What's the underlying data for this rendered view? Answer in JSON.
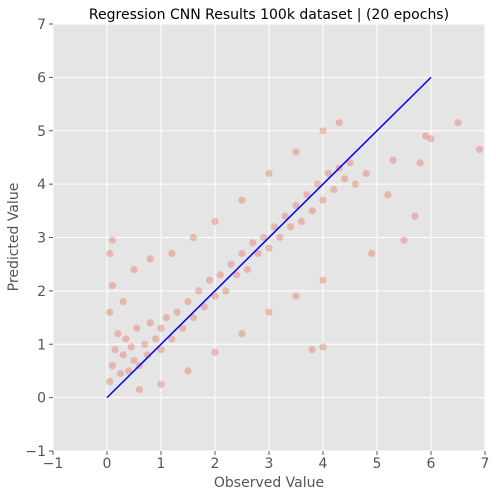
{
  "chart_data": {
    "type": "scatter",
    "title": "Regression CNN Results 100k dataset | (20 epochs)",
    "xlabel": "Observed Value",
    "ylabel": "Predicted Value",
    "xlim": [
      -1,
      7
    ],
    "ylim": [
      -1,
      7
    ],
    "xticks": [
      "−1",
      "0",
      "1",
      "2",
      "3",
      "4",
      "5",
      "6",
      "7"
    ],
    "yticks": [
      "−1",
      "0",
      "1",
      "2",
      "3",
      "4",
      "5",
      "6",
      "7"
    ],
    "grid": true,
    "background": "#e5e5e5",
    "point_color": "#e24a33",
    "fit_line_color": "#0000ff",
    "fit_line": {
      "x": [
        0,
        6
      ],
      "y": [
        0,
        6
      ]
    },
    "series": [
      {
        "values": [
          {
            "x": 0.05,
            "y": 0.3
          },
          {
            "x": 0.1,
            "y": 0.6
          },
          {
            "x": 0.15,
            "y": 0.9
          },
          {
            "x": 0.2,
            "y": 1.2
          },
          {
            "x": 0.25,
            "y": 0.45
          },
          {
            "x": 0.3,
            "y": 0.8
          },
          {
            "x": 0.35,
            "y": 1.1
          },
          {
            "x": 0.4,
            "y": 0.5
          },
          {
            "x": 0.45,
            "y": 0.95
          },
          {
            "x": 0.5,
            "y": 0.7
          },
          {
            "x": 0.55,
            "y": 1.3
          },
          {
            "x": 0.6,
            "y": 0.6
          },
          {
            "x": 0.7,
            "y": 1.0
          },
          {
            "x": 0.75,
            "y": 0.8
          },
          {
            "x": 0.8,
            "y": 1.4
          },
          {
            "x": 0.9,
            "y": 1.1
          },
          {
            "x": 1.0,
            "y": 0.9
          },
          {
            "x": 1.0,
            "y": 1.3
          },
          {
            "x": 1.1,
            "y": 1.5
          },
          {
            "x": 1.2,
            "y": 1.1
          },
          {
            "x": 1.3,
            "y": 1.6
          },
          {
            "x": 1.4,
            "y": 1.3
          },
          {
            "x": 1.5,
            "y": 1.8
          },
          {
            "x": 1.6,
            "y": 1.5
          },
          {
            "x": 1.7,
            "y": 2.0
          },
          {
            "x": 1.8,
            "y": 1.7
          },
          {
            "x": 1.9,
            "y": 2.2
          },
          {
            "x": 2.0,
            "y": 1.9
          },
          {
            "x": 2.1,
            "y": 2.3
          },
          {
            "x": 2.2,
            "y": 2.0
          },
          {
            "x": 2.3,
            "y": 2.5
          },
          {
            "x": 2.4,
            "y": 2.3
          },
          {
            "x": 2.5,
            "y": 2.7
          },
          {
            "x": 2.6,
            "y": 2.4
          },
          {
            "x": 2.7,
            "y": 2.9
          },
          {
            "x": 2.8,
            "y": 2.7
          },
          {
            "x": 2.9,
            "y": 3.0
          },
          {
            "x": 3.0,
            "y": 2.8
          },
          {
            "x": 3.1,
            "y": 3.2
          },
          {
            "x": 3.2,
            "y": 3.0
          },
          {
            "x": 3.3,
            "y": 3.4
          },
          {
            "x": 3.4,
            "y": 3.2
          },
          {
            "x": 3.5,
            "y": 3.6
          },
          {
            "x": 3.6,
            "y": 3.3
          },
          {
            "x": 3.7,
            "y": 3.8
          },
          {
            "x": 3.8,
            "y": 3.5
          },
          {
            "x": 3.9,
            "y": 4.0
          },
          {
            "x": 4.0,
            "y": 3.7
          },
          {
            "x": 4.1,
            "y": 4.2
          },
          {
            "x": 4.2,
            "y": 3.9
          },
          {
            "x": 4.3,
            "y": 4.3
          },
          {
            "x": 4.4,
            "y": 4.1
          },
          {
            "x": 4.5,
            "y": 4.4
          },
          {
            "x": 4.6,
            "y": 4.0
          },
          {
            "x": 4.8,
            "y": 4.2
          },
          {
            "x": 0.05,
            "y": 1.6
          },
          {
            "x": 0.1,
            "y": 2.1
          },
          {
            "x": 0.05,
            "y": 2.7
          },
          {
            "x": 0.1,
            "y": 2.95
          },
          {
            "x": 0.3,
            "y": 1.8
          },
          {
            "x": 0.5,
            "y": 2.4
          },
          {
            "x": 0.8,
            "y": 2.6
          },
          {
            "x": 1.2,
            "y": 2.7
          },
          {
            "x": 1.6,
            "y": 3.0
          },
          {
            "x": 2.0,
            "y": 3.3
          },
          {
            "x": 2.5,
            "y": 3.7
          },
          {
            "x": 3.0,
            "y": 4.2
          },
          {
            "x": 3.5,
            "y": 4.6
          },
          {
            "x": 4.0,
            "y": 5.0
          },
          {
            "x": 4.3,
            "y": 5.15
          },
          {
            "x": 0.6,
            "y": 0.15
          },
          {
            "x": 1.0,
            "y": 0.25
          },
          {
            "x": 1.5,
            "y": 0.5
          },
          {
            "x": 2.0,
            "y": 0.85
          },
          {
            "x": 2.5,
            "y": 1.2
          },
          {
            "x": 3.0,
            "y": 1.6
          },
          {
            "x": 3.5,
            "y": 1.9
          },
          {
            "x": 4.0,
            "y": 2.2
          },
          {
            "x": 3.8,
            "y": 0.9
          },
          {
            "x": 4.0,
            "y": 0.95
          },
          {
            "x": 4.9,
            "y": 2.7
          },
          {
            "x": 5.2,
            "y": 3.8
          },
          {
            "x": 5.5,
            "y": 2.95
          },
          {
            "x": 5.7,
            "y": 3.4
          },
          {
            "x": 5.8,
            "y": 4.4
          },
          {
            "x": 5.9,
            "y": 4.9
          },
          {
            "x": 6.0,
            "y": 4.85
          },
          {
            "x": 5.3,
            "y": 4.45
          },
          {
            "x": 6.5,
            "y": 5.15
          },
          {
            "x": 6.9,
            "y": 4.65
          }
        ]
      }
    ]
  }
}
